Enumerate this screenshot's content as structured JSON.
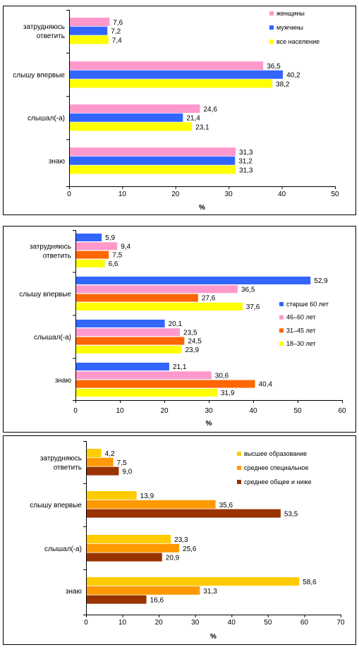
{
  "chart_data": [
    {
      "type": "bar",
      "orientation": "horizontal",
      "categories": [
        "затрудняюсь ответить",
        "слышу впервые",
        "слышал(-а)",
        "знаю"
      ],
      "category_lines": [
        [
          "затрудняюсь",
          "ответить"
        ],
        [
          "слышу впервые"
        ],
        [
          "слышал(-а)"
        ],
        [
          "знаю"
        ]
      ],
      "series": [
        {
          "name": "женщины",
          "color": "#ff99cc",
          "values": [
            7.6,
            36.5,
            24.6,
            31.3
          ]
        },
        {
          "name": "мужчины",
          "color": "#3366ff",
          "values": [
            7.2,
            40.2,
            21.4,
            31.2
          ]
        },
        {
          "name": "все население",
          "color": "#ffff00",
          "values": [
            7.4,
            38.2,
            23.1,
            31.3
          ]
        }
      ],
      "labels": [
        [
          "7,6",
          "7,2",
          "7,4"
        ],
        [
          "36,5",
          "40,2",
          "38,2"
        ],
        [
          "24,6",
          "21,4",
          "23,1"
        ],
        [
          "31,3",
          "31,2",
          "31,3"
        ]
      ],
      "xlim": [
        0,
        50
      ],
      "xticks": [
        "0",
        "10",
        "20",
        "30",
        "40",
        "50"
      ],
      "xlabel": "%",
      "legend_position": "top-right",
      "grid": false
    },
    {
      "type": "bar",
      "orientation": "horizontal",
      "categories": [
        "затрудняюсь ответить",
        "слышу впервые",
        "слышал(-а)",
        "знаю"
      ],
      "category_lines": [
        [
          "затрудняюсь",
          "ответить"
        ],
        [
          "слышу впервые"
        ],
        [
          "слышал(-а)"
        ],
        [
          "знаю"
        ]
      ],
      "series": [
        {
          "name": "старше 60 лет",
          "color": "#3366ff",
          "values": [
            5.9,
            52.9,
            20.1,
            21.1
          ]
        },
        {
          "name": "46–60 лет",
          "color": "#ff99cc",
          "values": [
            9.4,
            36.5,
            23.5,
            30.6
          ]
        },
        {
          "name": "31–45 лет",
          "color": "#ff6600",
          "values": [
            7.5,
            27.6,
            24.5,
            40.4
          ]
        },
        {
          "name": "18–30 лет",
          "color": "#ffff00",
          "values": [
            6.6,
            37.6,
            23.9,
            31.9
          ]
        }
      ],
      "labels": [
        [
          "5,9",
          "9,4",
          "7,5",
          "6,6"
        ],
        [
          "52,9",
          "36,5",
          "27,6",
          "37,6"
        ],
        [
          "20,1",
          "23,5",
          "24,5",
          "23,9"
        ],
        [
          "21,1",
          "30,6",
          "40,4",
          "31,9"
        ]
      ],
      "xlim": [
        0,
        60
      ],
      "xticks": [
        "0",
        "10",
        "20",
        "30",
        "40",
        "50",
        "60"
      ],
      "xlabel": "%",
      "legend_position": "right",
      "grid": false
    },
    {
      "type": "bar",
      "orientation": "horizontal",
      "categories": [
        "затрудняюсь ответить",
        "слышу впервые",
        "слышал(-а)",
        "знаю"
      ],
      "category_lines": [
        [
          "затрудняюсь",
          "ответить"
        ],
        [
          "слышу впервые"
        ],
        [
          "слышал(-а)"
        ],
        [
          "знаю"
        ]
      ],
      "series": [
        {
          "name": "высшее образование",
          "color": "#ffcc00",
          "values": [
            4.2,
            13.9,
            23.3,
            58.6
          ]
        },
        {
          "name": "среднее специальное",
          "color": "#ff9900",
          "values": [
            7.5,
            35.6,
            25.6,
            31.3
          ]
        },
        {
          "name": "среднее общее и ниже",
          "color": "#993300",
          "values": [
            9.0,
            53.5,
            20.9,
            16.6
          ]
        }
      ],
      "labels": [
        [
          "4,2",
          "7,5",
          "9,0"
        ],
        [
          "13,9",
          "35,6",
          "53,5"
        ],
        [
          "23,3",
          "25,6",
          "20,9"
        ],
        [
          "58,6",
          "31,3",
          "16,6"
        ]
      ],
      "xlim": [
        0,
        70
      ],
      "xticks": [
        "0",
        "10",
        "20",
        "30",
        "40",
        "50",
        "60",
        "70"
      ],
      "xlabel": "%",
      "legend_position": "top-right",
      "grid": false
    }
  ]
}
